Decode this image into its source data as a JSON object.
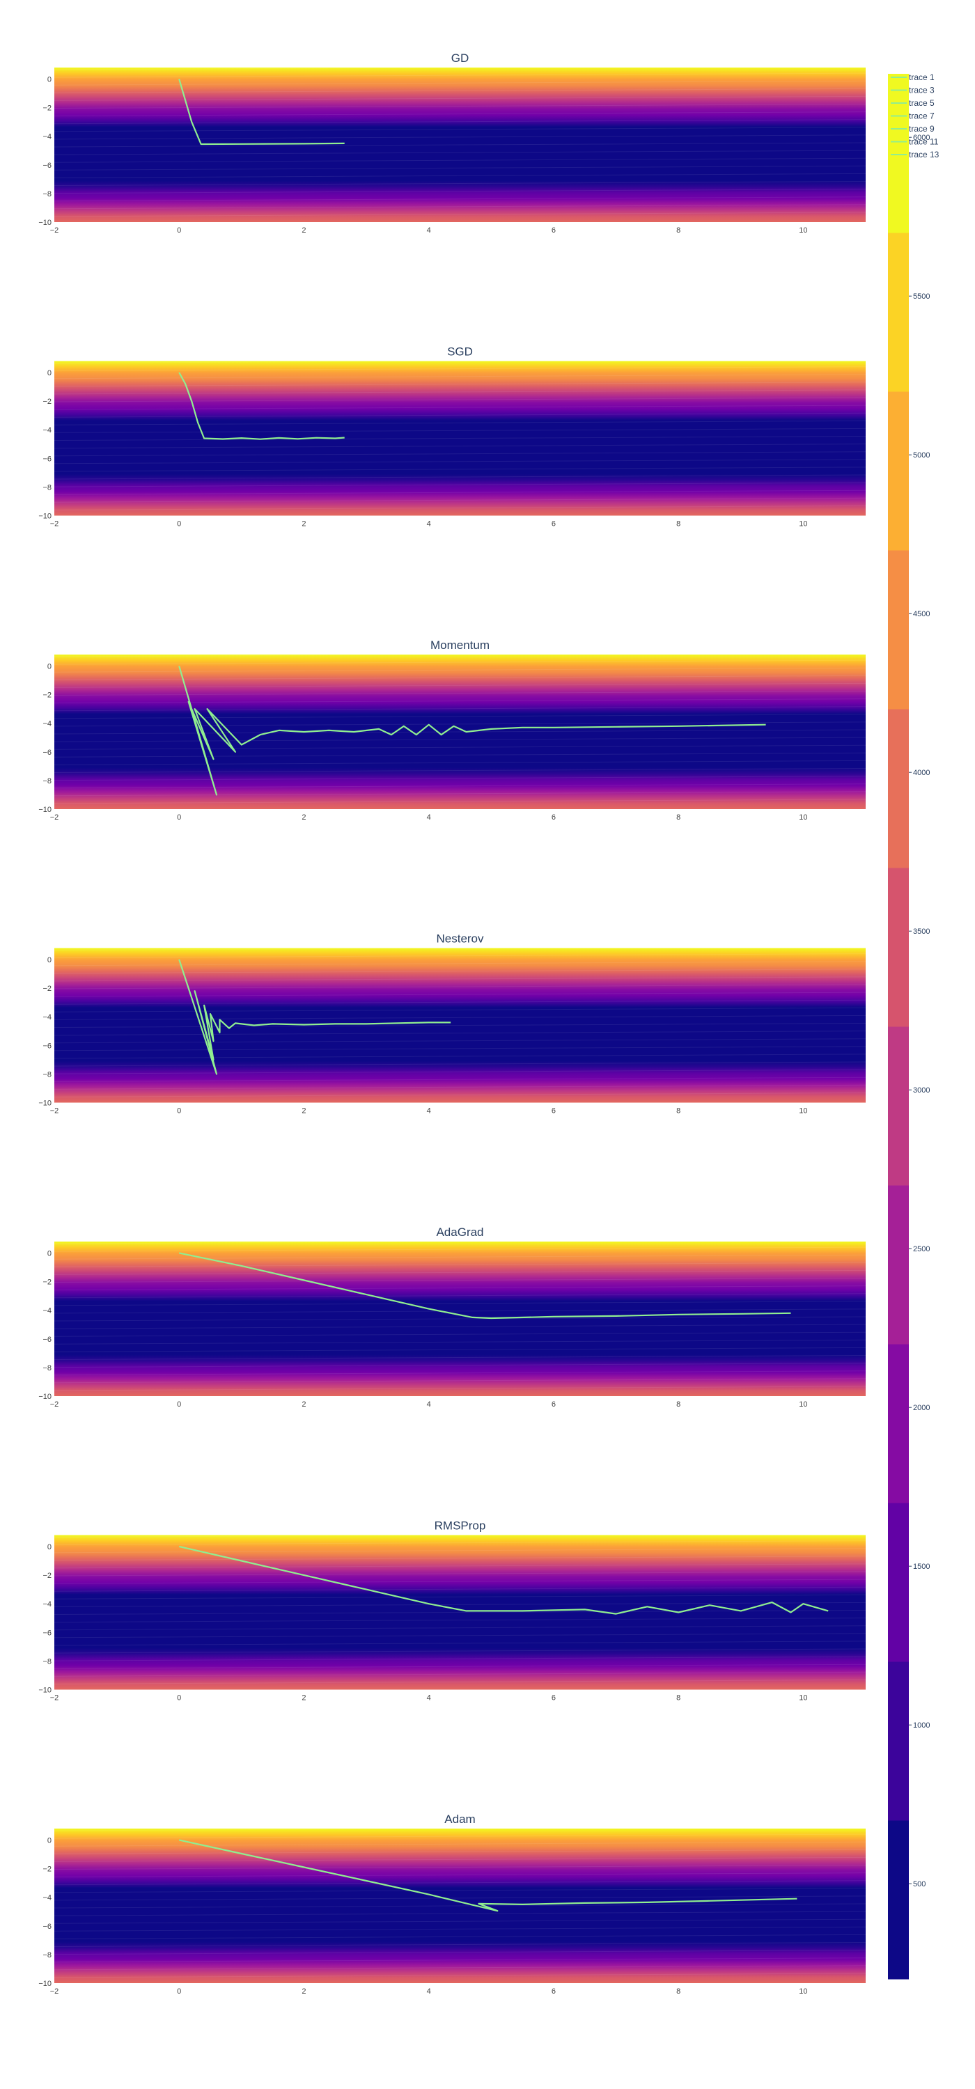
{
  "chart_data": {
    "type": "contour",
    "colorscale": [
      "#0d0887",
      "#46039f",
      "#7201a8",
      "#9c179e",
      "#bd3786",
      "#d8576b",
      "#ed7953",
      "#fb9f3a",
      "#fdca26",
      "#f0f921"
    ],
    "trajectory_color": "#90ee90",
    "colorbar": {
      "range": [
        200,
        6200
      ],
      "ticks": [
        500,
        1000,
        1500,
        2000,
        2500,
        3000,
        3500,
        4000,
        4500,
        5000,
        5500,
        6000
      ]
    },
    "legend": {
      "entries": [
        "trace 1",
        "trace 3",
        "trace 5",
        "trace 7",
        "trace 9",
        "trace 11",
        "trace 13"
      ],
      "placement": "top-right"
    },
    "xlim": [
      -2,
      11
    ],
    "ylim": [
      -10,
      0.8
    ],
    "x_ticks": [
      -2,
      0,
      2,
      4,
      6,
      8,
      10
    ],
    "y_ticks": [
      0,
      -2,
      -4,
      -6,
      -8,
      -10
    ],
    "subplots": [
      {
        "title": "GD",
        "points": [
          [
            0,
            0
          ],
          [
            0.1,
            -1.5
          ],
          [
            0.2,
            -3
          ],
          [
            0.35,
            -4.55
          ],
          [
            1,
            -4.54
          ],
          [
            2,
            -4.52
          ],
          [
            2.65,
            -4.5
          ]
        ]
      },
      {
        "title": "SGD",
        "points": [
          [
            0,
            0
          ],
          [
            0.1,
            -0.8
          ],
          [
            0.2,
            -2
          ],
          [
            0.3,
            -3.5
          ],
          [
            0.4,
            -4.6
          ],
          [
            0.7,
            -4.65
          ],
          [
            1.0,
            -4.58
          ],
          [
            1.3,
            -4.66
          ],
          [
            1.6,
            -4.57
          ],
          [
            1.9,
            -4.64
          ],
          [
            2.2,
            -4.56
          ],
          [
            2.5,
            -4.6
          ],
          [
            2.65,
            -4.55
          ]
        ]
      },
      {
        "title": "Momentum",
        "points": [
          [
            0,
            0
          ],
          [
            0.6,
            -9
          ],
          [
            0.15,
            -2.5
          ],
          [
            0.55,
            -6.5
          ],
          [
            0.25,
            -3
          ],
          [
            0.9,
            -6
          ],
          [
            0.45,
            -3
          ],
          [
            1.0,
            -5.5
          ],
          [
            1.3,
            -4.8
          ],
          [
            1.6,
            -4.5
          ],
          [
            2.0,
            -4.6
          ],
          [
            2.4,
            -4.5
          ],
          [
            2.8,
            -4.6
          ],
          [
            3.2,
            -4.4
          ],
          [
            3.4,
            -4.8
          ],
          [
            3.6,
            -4.2
          ],
          [
            3.8,
            -4.8
          ],
          [
            4.0,
            -4.1
          ],
          [
            4.2,
            -4.8
          ],
          [
            4.4,
            -4.2
          ],
          [
            4.6,
            -4.6
          ],
          [
            5.0,
            -4.4
          ],
          [
            5.5,
            -4.3
          ],
          [
            6.0,
            -4.3
          ],
          [
            7.0,
            -4.25
          ],
          [
            8.0,
            -4.2
          ],
          [
            9.4,
            -4.1
          ]
        ]
      },
      {
        "title": "Nesterov",
        "points": [
          [
            0,
            0
          ],
          [
            0.6,
            -8
          ],
          [
            0.25,
            -2.2
          ],
          [
            0.55,
            -7
          ],
          [
            0.4,
            -3.2
          ],
          [
            0.55,
            -5.7
          ],
          [
            0.5,
            -3.8
          ],
          [
            0.65,
            -5.1
          ],
          [
            0.65,
            -4.2
          ],
          [
            0.8,
            -4.8
          ],
          [
            0.9,
            -4.45
          ],
          [
            1.2,
            -4.6
          ],
          [
            1.5,
            -4.5
          ],
          [
            2.0,
            -4.55
          ],
          [
            2.5,
            -4.5
          ],
          [
            3.0,
            -4.5
          ],
          [
            3.5,
            -4.45
          ],
          [
            4.0,
            -4.4
          ],
          [
            4.35,
            -4.4
          ]
        ]
      },
      {
        "title": "AdaGrad",
        "points": [
          [
            0,
            0
          ],
          [
            1,
            -0.9
          ],
          [
            2,
            -1.9
          ],
          [
            3,
            -2.9
          ],
          [
            4,
            -3.9
          ],
          [
            4.7,
            -4.5
          ],
          [
            5,
            -4.55
          ],
          [
            6,
            -4.45
          ],
          [
            7,
            -4.4
          ],
          [
            8,
            -4.3
          ],
          [
            9,
            -4.25
          ],
          [
            9.8,
            -4.2
          ]
        ]
      },
      {
        "title": "RMSProp",
        "points": [
          [
            0,
            0
          ],
          [
            1,
            -1
          ],
          [
            2,
            -2
          ],
          [
            3,
            -3
          ],
          [
            4,
            -4
          ],
          [
            4.6,
            -4.5
          ],
          [
            5.5,
            -4.5
          ],
          [
            6.5,
            -4.4
          ],
          [
            7,
            -4.7
          ],
          [
            7.5,
            -4.2
          ],
          [
            8,
            -4.6
          ],
          [
            8.5,
            -4.1
          ],
          [
            9,
            -4.5
          ],
          [
            9.5,
            -3.9
          ],
          [
            9.8,
            -4.6
          ],
          [
            10.0,
            -4.0
          ],
          [
            10.4,
            -4.5
          ]
        ]
      },
      {
        "title": "Adam",
        "points": [
          [
            0,
            0
          ],
          [
            1,
            -0.95
          ],
          [
            2,
            -1.9
          ],
          [
            3,
            -2.85
          ],
          [
            4,
            -3.8
          ],
          [
            5.1,
            -4.95
          ],
          [
            4.8,
            -4.45
          ],
          [
            5.5,
            -4.5
          ],
          [
            6.5,
            -4.4
          ],
          [
            7.5,
            -4.35
          ],
          [
            8.5,
            -4.25
          ],
          [
            9.9,
            -4.1
          ]
        ]
      }
    ]
  }
}
